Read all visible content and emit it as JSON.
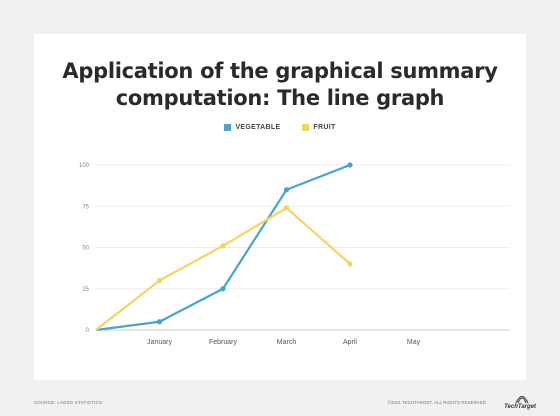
{
  "title": "Application of the graphical summary computation: The line graph",
  "chart_data": {
    "type": "line",
    "x": [
      "",
      "January",
      "February",
      "March",
      "April",
      "May"
    ],
    "ylim": [
      0,
      100
    ],
    "yticks": [
      0,
      25,
      50,
      75,
      100
    ],
    "grid": true,
    "legend": "top-center",
    "series": [
      {
        "name": "VEGETABLE",
        "color": "#4ba3cf",
        "values": [
          0,
          5,
          25,
          85,
          100,
          null
        ]
      },
      {
        "name": "FRUIT",
        "color": "#f6d265",
        "values": [
          0,
          30,
          51,
          74,
          40,
          null
        ]
      }
    ]
  },
  "footer": {
    "source": "SOURCE: LAERD STATISTICS",
    "copyright": "©2021 TECHTARGET. ALL RIGHTS RESERVED",
    "brand": "TechTarget"
  }
}
